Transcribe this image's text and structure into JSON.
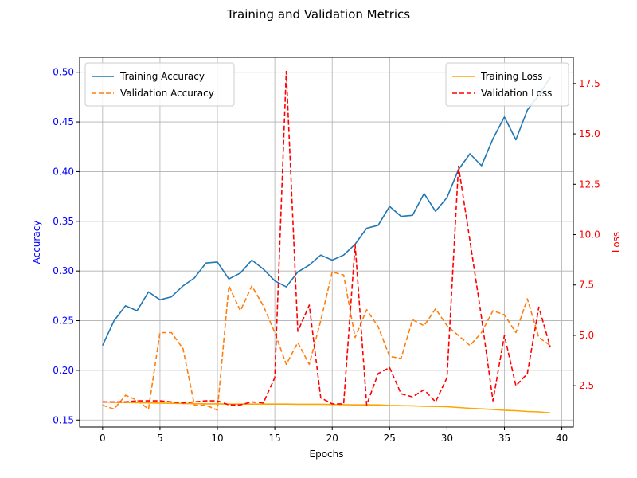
{
  "chart_data": {
    "type": "line",
    "title": "Training and Validation Metrics",
    "xlabel": "Epochs",
    "ylabel_left": "Accuracy",
    "ylabel_right": "Loss",
    "left_axis_color": "#0000ff",
    "right_axis_color": "#ff0000",
    "grid": true,
    "xlim": [
      -2,
      41
    ],
    "ylim_left": [
      0.143,
      0.515
    ],
    "ylim_right": [
      0.45,
      18.8
    ],
    "x_ticks": [
      0,
      5,
      10,
      15,
      20,
      25,
      30,
      35,
      40
    ],
    "x_tick_labels": [
      "0",
      "5",
      "10",
      "15",
      "20",
      "25",
      "30",
      "35",
      "40"
    ],
    "y_left_ticks": [
      0.15,
      0.2,
      0.25,
      0.3,
      0.35,
      0.4,
      0.45,
      0.5
    ],
    "y_left_tick_labels": [
      "0.15",
      "0.20",
      "0.25",
      "0.30",
      "0.35",
      "0.40",
      "0.45",
      "0.50"
    ],
    "y_right_ticks": [
      2.5,
      5.0,
      7.5,
      10.0,
      12.5,
      15.0,
      17.5
    ],
    "y_right_tick_labels": [
      "2.5",
      "5.0",
      "7.5",
      "10.0",
      "12.5",
      "15.0",
      "17.5"
    ],
    "x": [
      0,
      1,
      2,
      3,
      4,
      5,
      6,
      7,
      8,
      9,
      10,
      11,
      12,
      13,
      14,
      15,
      16,
      17,
      18,
      19,
      20,
      21,
      22,
      23,
      24,
      25,
      26,
      27,
      28,
      29,
      30,
      31,
      32,
      33,
      34,
      35,
      36,
      37,
      38,
      39
    ],
    "series": [
      {
        "name": "Training Accuracy",
        "axis": "left",
        "color": "#1f77b4",
        "dash": "solid",
        "values": [
          0.225,
          0.25,
          0.265,
          0.26,
          0.279,
          0.271,
          0.274,
          0.285,
          0.293,
          0.308,
          0.309,
          0.292,
          0.298,
          0.311,
          0.302,
          0.29,
          0.284,
          0.299,
          0.306,
          0.316,
          0.311,
          0.316,
          0.327,
          0.343,
          0.346,
          0.365,
          0.355,
          0.356,
          0.378,
          0.36,
          0.374,
          0.402,
          0.418,
          0.406,
          0.433,
          0.455,
          0.432,
          0.462,
          0.477,
          0.495
        ]
      },
      {
        "name": "Validation Accuracy",
        "axis": "left",
        "color": "#ff7f0e",
        "dash": "dashed",
        "values": [
          0.165,
          0.161,
          0.175,
          0.17,
          0.161,
          0.238,
          0.238,
          0.222,
          0.165,
          0.165,
          0.16,
          0.285,
          0.26,
          0.285,
          0.265,
          0.238,
          0.206,
          0.228,
          0.206,
          0.25,
          0.299,
          0.296,
          0.233,
          0.261,
          0.244,
          0.214,
          0.212,
          0.251,
          0.245,
          0.262,
          0.245,
          0.235,
          0.225,
          0.238,
          0.26,
          0.256,
          0.238,
          0.272,
          0.233,
          0.225
        ]
      },
      {
        "name": "Training Loss",
        "axis": "right",
        "color": "#ffa500",
        "dash": "solid",
        "values": [
          1.7,
          1.68,
          1.67,
          1.66,
          1.65,
          1.64,
          1.63,
          1.62,
          1.61,
          1.6,
          1.6,
          1.59,
          1.59,
          1.59,
          1.59,
          1.59,
          1.59,
          1.58,
          1.58,
          1.58,
          1.57,
          1.56,
          1.55,
          1.55,
          1.55,
          1.52,
          1.51,
          1.5,
          1.48,
          1.47,
          1.46,
          1.42,
          1.38,
          1.35,
          1.32,
          1.28,
          1.26,
          1.22,
          1.2,
          1.15
        ]
      },
      {
        "name": "Validation Loss",
        "axis": "right",
        "color": "#ff0000",
        "dash": "dashed",
        "values": [
          1.7,
          1.7,
          1.7,
          1.75,
          1.75,
          1.75,
          1.7,
          1.65,
          1.7,
          1.75,
          1.75,
          1.55,
          1.55,
          1.7,
          1.65,
          2.9,
          18.1,
          5.2,
          6.5,
          1.9,
          1.6,
          1.6,
          9.5,
          1.55,
          3.1,
          3.4,
          2.1,
          1.95,
          2.3,
          1.7,
          2.9,
          13.4,
          9.7,
          5.9,
          1.75,
          5.0,
          2.5,
          3.1,
          6.4,
          4.4
        ]
      }
    ],
    "legends": [
      {
        "position": "top-left",
        "entries": [
          "Training Accuracy",
          "Validation Accuracy"
        ]
      },
      {
        "position": "top-right",
        "entries": [
          "Training Loss",
          "Validation Loss"
        ]
      }
    ]
  }
}
